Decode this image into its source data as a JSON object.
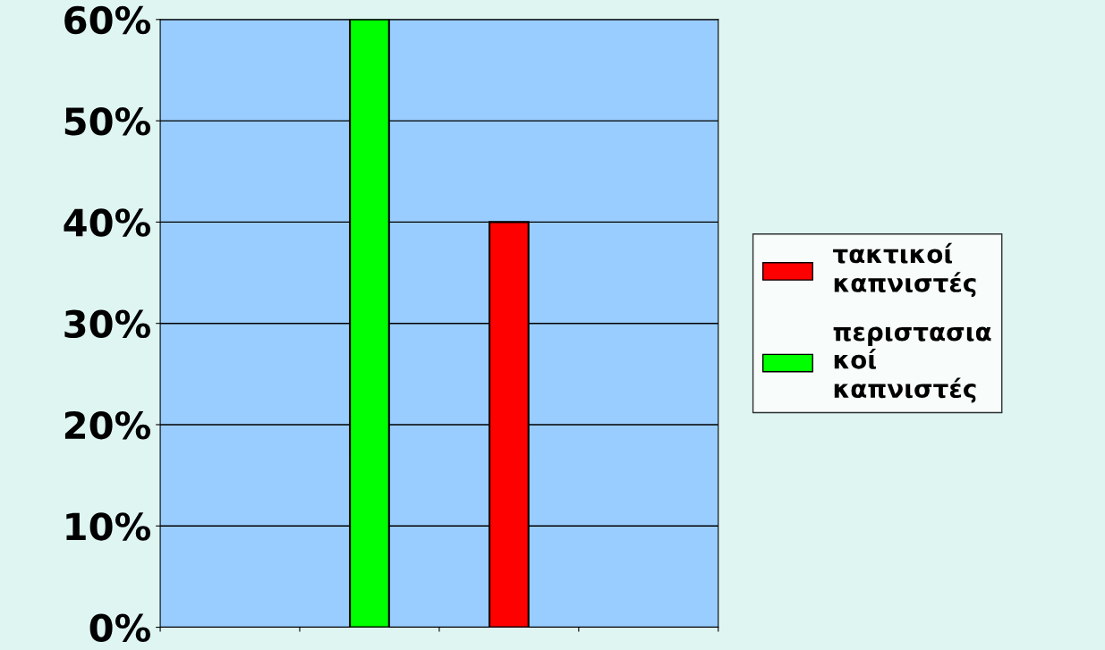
{
  "chart_data": {
    "type": "bar",
    "categories": [
      null,
      null,
      null,
      null
    ],
    "series": [
      {
        "name": "τακτικοί καπνιστές",
        "color": "#ff0000",
        "values": [
          null,
          null,
          40,
          null
        ]
      },
      {
        "name": "περιστασιακοί καπνιστές",
        "color": "#00ff00",
        "values": [
          null,
          60,
          null,
          null
        ]
      }
    ],
    "ylim": [
      0,
      60
    ],
    "yticks": [
      {
        "value": 0,
        "label": "0%"
      },
      {
        "value": 10,
        "label": "10%"
      },
      {
        "value": 20,
        "label": "20%"
      },
      {
        "value": 30,
        "label": "30%"
      },
      {
        "value": 40,
        "label": "40%"
      },
      {
        "value": 50,
        "label": "50%"
      },
      {
        "value": 60,
        "label": "60%"
      }
    ],
    "grid": "y",
    "legend": "right"
  }
}
